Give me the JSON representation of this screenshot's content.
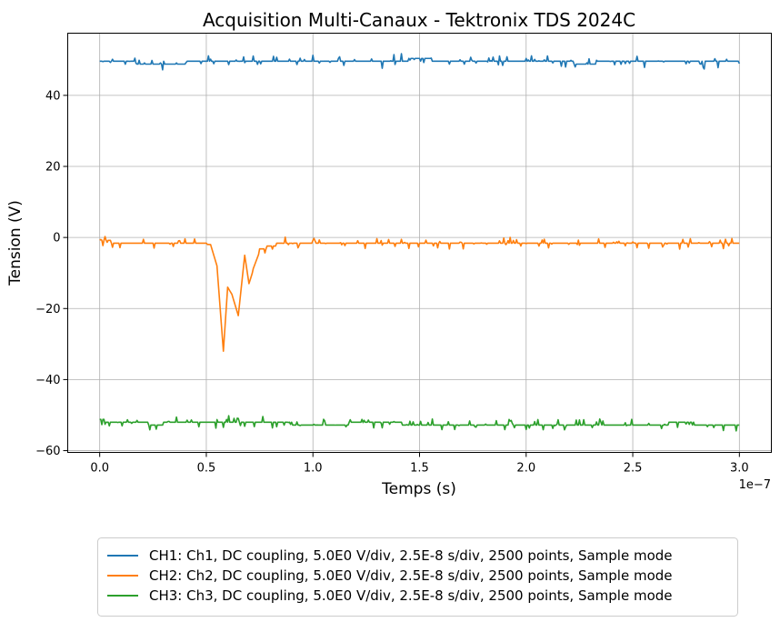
{
  "chart_data": {
    "type": "line",
    "title": "Acquisition Multi-Canaux - Tektronix TDS 2024C",
    "xlabel": "Temps (s)",
    "ylabel": "Tension (V)",
    "x_offset_label": "1e−7",
    "xlim": [
      -0.15,
      3.15
    ],
    "ylim": [
      -60.5,
      57.5
    ],
    "x_scale_factor": "1e-7",
    "xticks": [
      0.0,
      0.5,
      1.0,
      1.5,
      2.0,
      2.5,
      3.0
    ],
    "xtick_labels": [
      "0.0",
      "0.5",
      "1.0",
      "1.5",
      "2.0",
      "2.5",
      "3.0"
    ],
    "yticks": [
      -60,
      -40,
      -20,
      0,
      20,
      40
    ],
    "ytick_labels": [
      "−60",
      "−40",
      "−20",
      "0",
      "20",
      "40"
    ],
    "grid": true,
    "legend_position": "bottom-center, below plot",
    "series": [
      {
        "name": "CH1: Ch1, DC coupling, 5.0E0 V/div, 2.5E-8 s/div, 2500 points, Sample mode",
        "color": "#1f77b4",
        "baseline": 49.5,
        "noise": 1.2,
        "x": [
          0.0,
          0.25,
          0.5,
          0.75,
          1.0,
          1.25,
          1.5,
          1.75,
          2.0,
          2.25,
          2.5,
          2.75,
          3.0
        ],
        "y": [
          49.8,
          48.9,
          49.4,
          49.6,
          49.5,
          49.2,
          50.2,
          49.3,
          50.0,
          49.1,
          49.4,
          49.2,
          49.6
        ]
      },
      {
        "name": "CH2: Ch2, DC coupling, 5.0E0 V/div, 2.5E-8 s/div, 2500 points, Sample mode",
        "color": "#ff7f0e",
        "baseline": -1.8,
        "noise": 1.0,
        "x": [
          0.0,
          0.25,
          0.45,
          0.52,
          0.55,
          0.58,
          0.6,
          0.62,
          0.65,
          0.68,
          0.7,
          0.75,
          0.85,
          1.0,
          1.5,
          2.0,
          2.5,
          3.0
        ],
        "y": [
          -1.0,
          -2.0,
          -1.8,
          -2.0,
          -8.0,
          -32.0,
          -14.0,
          -16.0,
          -22.0,
          -5.0,
          -13.0,
          -3.5,
          -1.5,
          -1.2,
          -1.8,
          -1.5,
          -2.0,
          -1.8
        ]
      },
      {
        "name": "CH3: Ch3, DC coupling, 5.0E0 V/div, 2.5E-8 s/div, 2500 points, Sample mode",
        "color": "#2ca02c",
        "baseline": -52.5,
        "noise": 1.1,
        "x": [
          0.0,
          0.25,
          0.5,
          0.75,
          1.0,
          1.25,
          1.5,
          1.75,
          2.0,
          2.25,
          2.5,
          2.75,
          3.0
        ],
        "y": [
          -51.5,
          -52.5,
          -52.0,
          -51.8,
          -52.8,
          -52.2,
          -52.5,
          -52.8,
          -52.4,
          -53.0,
          -52.6,
          -52.3,
          -53.0
        ]
      }
    ]
  }
}
